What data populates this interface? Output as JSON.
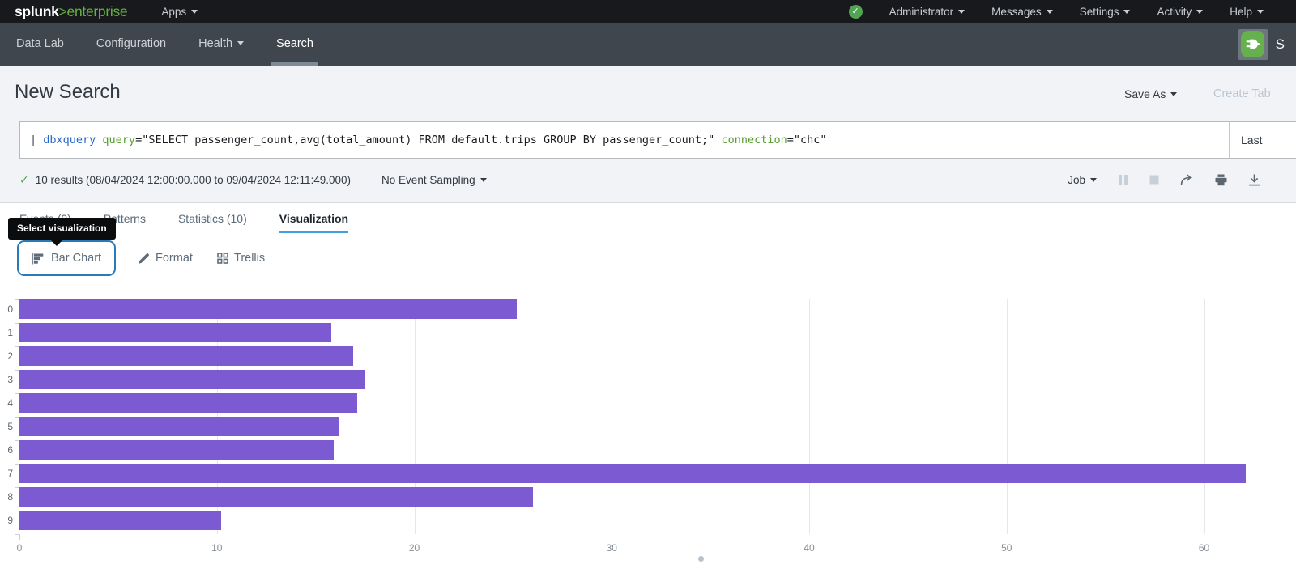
{
  "topbar": {
    "logo_main": "splunk",
    "logo_gt": ">",
    "logo_sub": "enterprise",
    "apps_label": "Apps",
    "menus": [
      "Administrator",
      "Messages",
      "Settings",
      "Activity",
      "Help"
    ]
  },
  "appnav": {
    "items": [
      "Data Lab",
      "Configuration",
      "Health",
      "Search"
    ],
    "active": "Search",
    "app_badge_letter": "S"
  },
  "header": {
    "title": "New Search",
    "save_as_label": "Save As",
    "create_table_label": "Create Tab"
  },
  "search": {
    "pipe": "| ",
    "command": "dbxquery ",
    "arg1_key": "query",
    "arg1_value": "=\"SELECT passenger_count,avg(total_amount) FROM default.trips GROUP BY passenger_count;\" ",
    "arg2_key": "connection",
    "arg2_value": "=\"chc\"",
    "time_range": "Last"
  },
  "results": {
    "summary": "10 results (08/04/2024 12:00:00.000 to 09/04/2024 12:11:49.000)",
    "sampling_label": "No Event Sampling",
    "job_label": "Job"
  },
  "tabs": {
    "items": [
      "Events (0)",
      "Patterns",
      "Statistics (10)",
      "Visualization"
    ],
    "active": "Visualization"
  },
  "tooltip_text": "Select visualization",
  "viz_toolbar": {
    "chart_type_label": "Bar Chart",
    "format_label": "Format",
    "trellis_label": "Trellis"
  },
  "colors": {
    "accent_green": "#65b13f",
    "tab_underline_blue": "#3fa0dc",
    "focus_border_blue": "#2a7ab8",
    "bar_purple": "#7b5ad2"
  },
  "chart_data": {
    "type": "bar",
    "orientation": "horizontal",
    "categories": [
      "0",
      "1",
      "2",
      "3",
      "4",
      "5",
      "6",
      "7",
      "8",
      "9"
    ],
    "values": [
      25.2,
      15.8,
      16.9,
      17.5,
      17.1,
      16.2,
      15.9,
      62.1,
      26.0,
      10.2
    ],
    "xticks": [
      0,
      10,
      20,
      30,
      40,
      50,
      60
    ],
    "xlim": [
      0,
      64
    ],
    "grid": "vertical",
    "bar_color": "#7b5ad2",
    "title": "",
    "xlabel": "",
    "ylabel": "",
    "legend_position": "none"
  }
}
